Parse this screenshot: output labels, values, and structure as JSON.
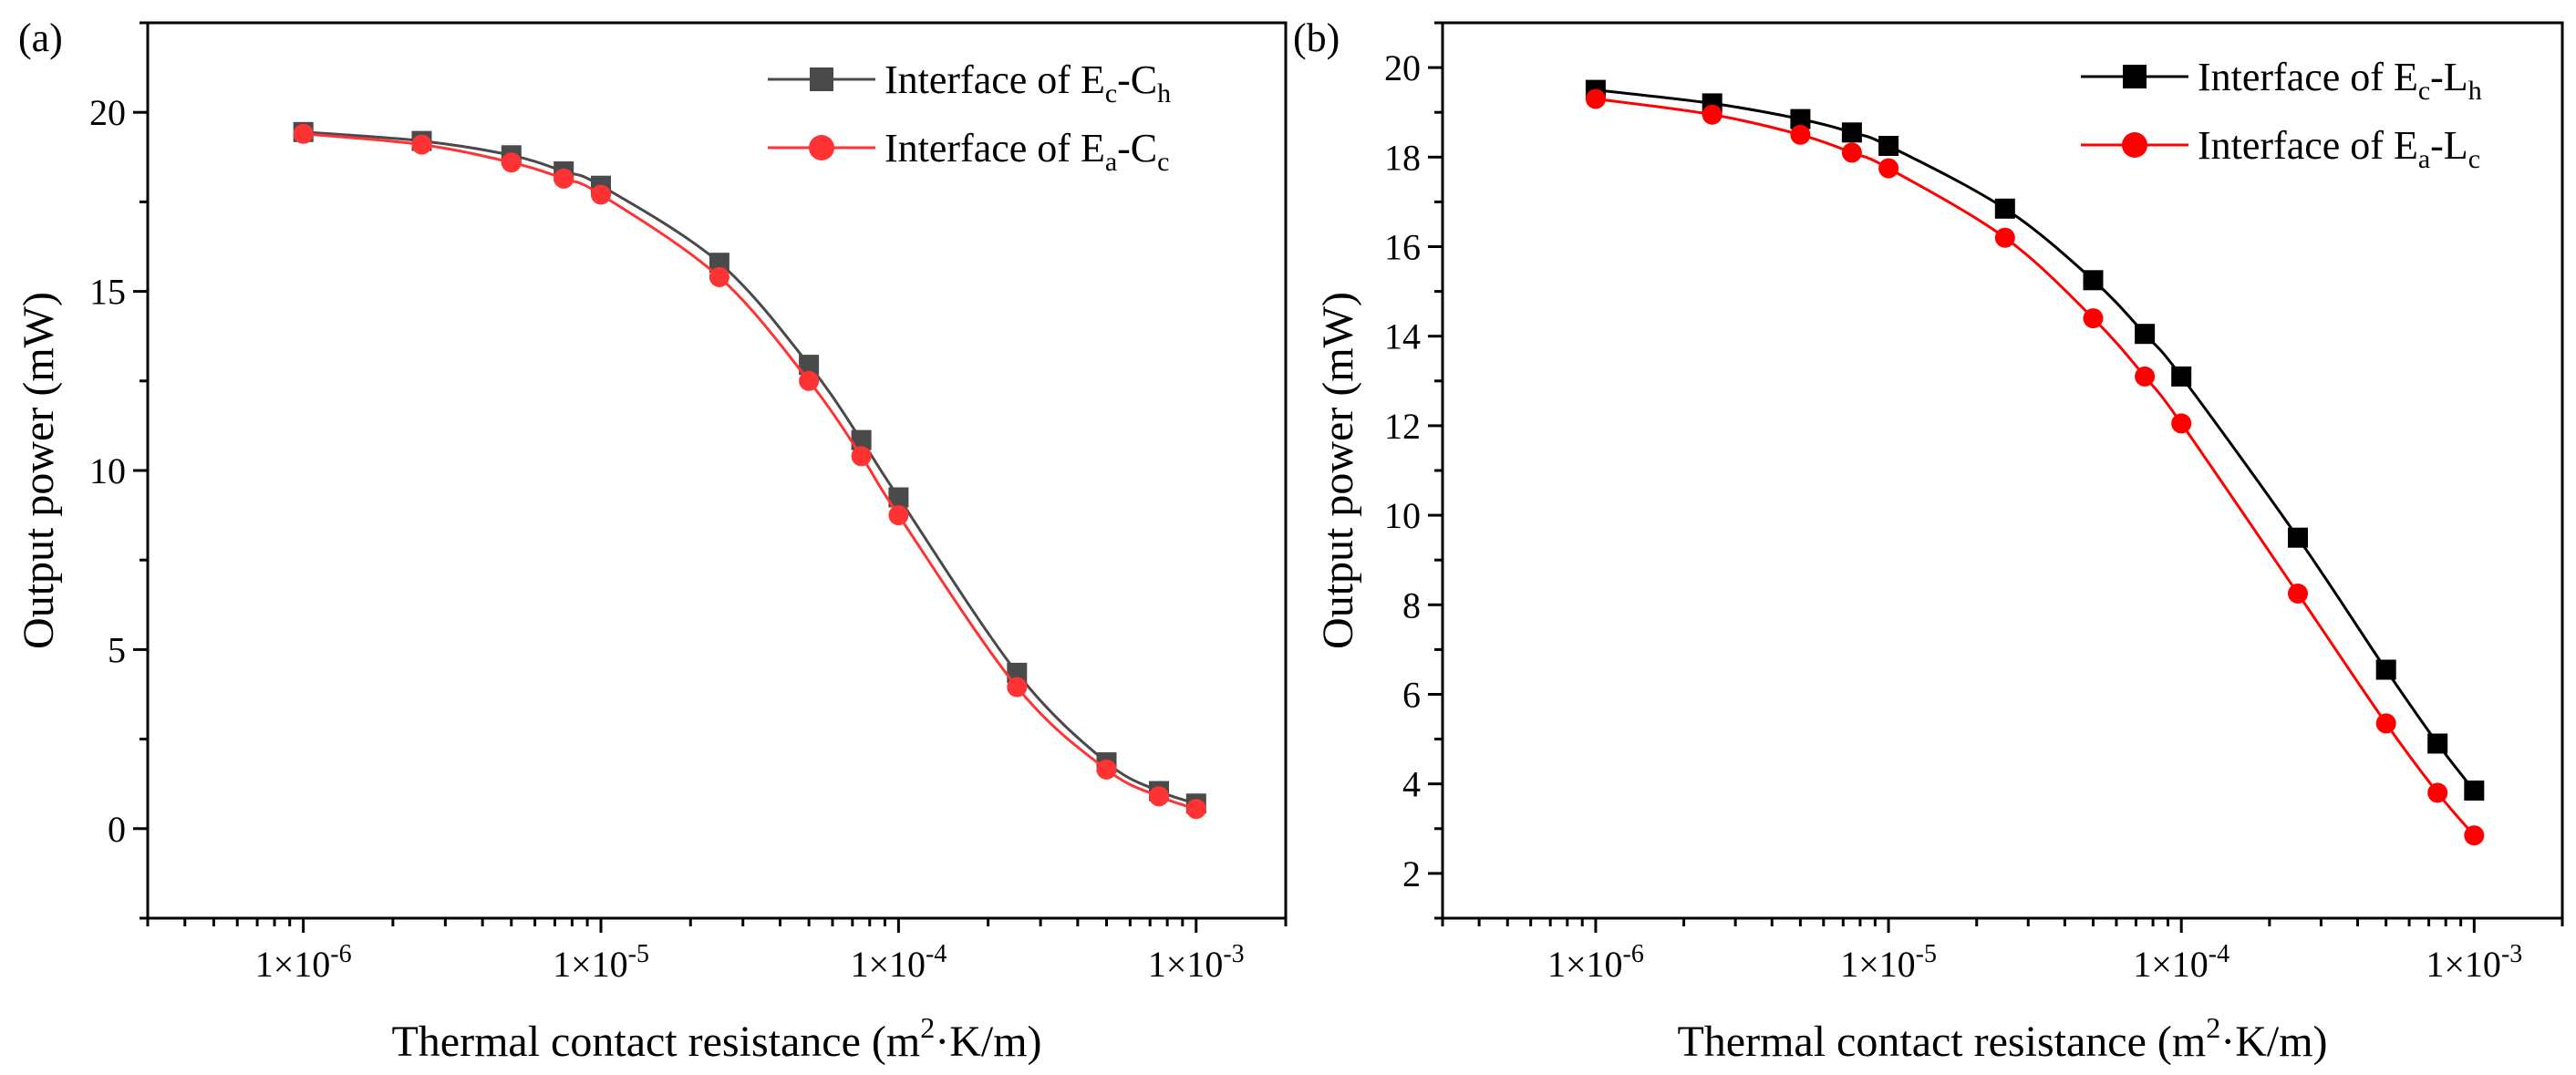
{
  "panels": [
    {
      "label": "(a)",
      "xlabel_main": "Thermal contact resistance (m",
      "xlabel_sup": "2",
      "xlabel_rest": "·K/m)",
      "ylabel": "Output power (mW)",
      "xticks": [
        {
          "mant": "1×10",
          "exp": "-6"
        },
        {
          "mant": "1×10",
          "exp": "-5"
        },
        {
          "mant": "1×10",
          "exp": "-4"
        },
        {
          "mant": "1×10",
          "exp": "-3"
        }
      ],
      "yticks": [
        "0",
        "5",
        "10",
        "15",
        "20"
      ],
      "legend": [
        {
          "prefix": "Interface of E",
          "s1": "c",
          "mid": "-C",
          "s2": "h"
        },
        {
          "prefix": "Interface of E",
          "s1": "a",
          "mid": "-C",
          "s2": "c"
        }
      ]
    },
    {
      "label": "(b)",
      "xlabel_main": "Thermal contact resistance (m",
      "xlabel_sup": "2",
      "xlabel_rest": "·K/m)",
      "ylabel": "Output power (mW)",
      "xticks": [
        {
          "mant": "1×10",
          "exp": "-6"
        },
        {
          "mant": "1×10",
          "exp": "-5"
        },
        {
          "mant": "1×10",
          "exp": "-4"
        },
        {
          "mant": "1×10",
          "exp": "-3"
        }
      ],
      "yticks": [
        "2",
        "4",
        "6",
        "8",
        "10",
        "12",
        "14",
        "16",
        "18",
        "20"
      ],
      "legend": [
        {
          "prefix": "Interface of E",
          "s1": "c",
          "mid": "-L",
          "s2": "h"
        },
        {
          "prefix": "Interface of E",
          "s1": "a",
          "mid": "-L",
          "s2": "c"
        }
      ]
    }
  ],
  "chart_data": [
    {
      "type": "line",
      "xscale": "log",
      "xlim": [
        3e-07,
        0.002
      ],
      "ylim": [
        -2.5,
        22.5
      ],
      "xlabel": "Thermal contact resistance (m2·K/m)",
      "ylabel": "Output power (mW)",
      "legend_position": "top-right",
      "grid": false,
      "x": [
        1e-06,
        2.5e-06,
        5e-06,
        7.5e-06,
        1e-05,
        2.5e-05,
        5e-05,
        7.5e-05,
        0.0001,
        0.00025,
        0.0005,
        0.00075,
        0.001
      ],
      "series": [
        {
          "name": "Interface of Ec-Ch",
          "marker": "square",
          "color": "#4a4a4a",
          "values": [
            19.45,
            19.2,
            18.8,
            18.35,
            17.95,
            15.8,
            12.95,
            10.85,
            9.25,
            4.35,
            1.85,
            1.05,
            0.7
          ]
        },
        {
          "name": "Interface of Ea-Cc",
          "marker": "circle",
          "color": "#ff3333",
          "values": [
            19.4,
            19.1,
            18.6,
            18.15,
            17.7,
            15.4,
            12.5,
            10.4,
            8.75,
            3.95,
            1.65,
            0.9,
            0.55
          ]
        }
      ]
    },
    {
      "type": "line",
      "xscale": "log",
      "xlim": [
        3e-07,
        0.002
      ],
      "ylim": [
        1,
        21
      ],
      "xlabel": "Thermal contact resistance (m2·K/m)",
      "ylabel": "Output power (mW)",
      "legend_position": "top-right",
      "grid": false,
      "x": [
        1e-06,
        2.5e-06,
        5e-06,
        7.5e-06,
        1e-05,
        2.5e-05,
        5e-05,
        7.5e-05,
        0.0001,
        0.00025,
        0.0005,
        0.00075,
        0.001
      ],
      "series": [
        {
          "name": "Interface of Ec-Lh",
          "marker": "square",
          "color": "#000000",
          "values": [
            19.5,
            19.2,
            18.85,
            18.55,
            18.25,
            16.85,
            15.25,
            14.05,
            13.1,
            9.5,
            6.55,
            4.9,
            3.85
          ]
        },
        {
          "name": "Interface of Ea-Lc",
          "marker": "circle",
          "color": "#ff0000",
          "values": [
            19.3,
            18.95,
            18.5,
            18.1,
            17.75,
            16.2,
            14.4,
            13.1,
            12.05,
            8.25,
            5.35,
            3.8,
            2.85
          ]
        }
      ]
    }
  ]
}
